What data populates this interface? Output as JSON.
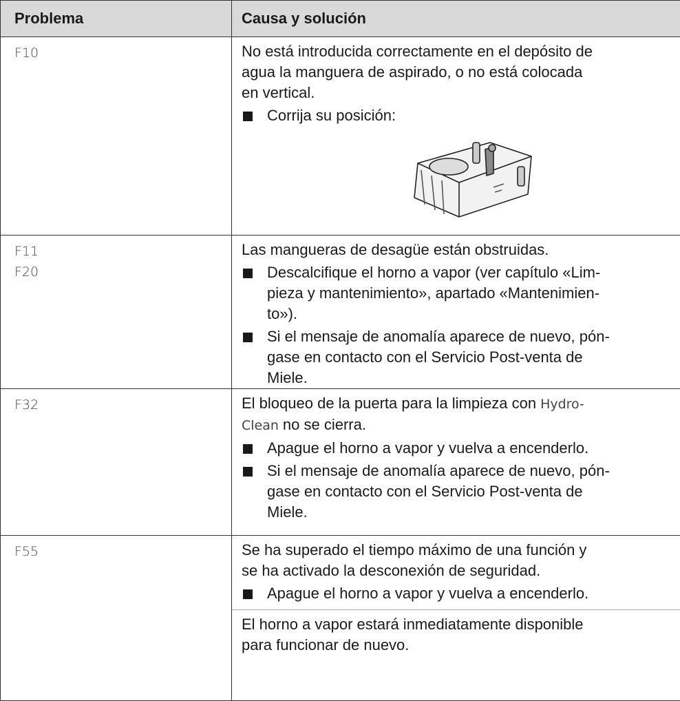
{
  "header": {
    "problem": "Problema",
    "cause": "Causa y solución"
  },
  "rows": [
    {
      "codes": [
        "F10"
      ],
      "blocks": [
        {
          "type": "p",
          "lines": [
            "No está introducida correctamente en el depósito de",
            "agua la manguera de aspirado, o no está colocada",
            "en vertical."
          ]
        },
        {
          "type": "bullet",
          "lines": [
            "Corrija su posición:"
          ]
        },
        {
          "type": "figure"
        }
      ]
    },
    {
      "codes": [
        "F11",
        "F20"
      ],
      "blocks": [
        {
          "type": "p",
          "lines": [
            "Las mangueras de desagüe están obstruidas."
          ]
        },
        {
          "type": "bullet",
          "lines": [
            "Descalcifique el horno a vapor (ver capítulo «Lim-",
            "pieza y mantenimiento», apartado «Mantenimien-",
            "to»)."
          ]
        },
        {
          "type": "bullet",
          "lines": [
            "Si el mensaje de anomalía aparece de nuevo, pón-",
            "gase en contacto con el Servicio Post-venta de",
            "Miele."
          ]
        }
      ]
    },
    {
      "codes": [
        "F32"
      ],
      "blocks": [
        {
          "type": "p",
          "lines": [
            [
              {
                "text": "El bloqueo de la puerta para la limpieza con"
              },
              {
                "text": "Hydro-",
                "display": true
              }
            ],
            [
              {
                "text": "Clean",
                "display": true
              },
              {
                "text": "no se cierra."
              }
            ]
          ]
        },
        {
          "type": "bullet",
          "lines": [
            "Apague el horno a vapor y vuelva a encenderlo."
          ]
        },
        {
          "type": "bullet",
          "lines": [
            "Si el mensaje de anomalía aparece de nuevo, pón-",
            "gase en contacto con el Servicio Post-venta de",
            "Miele."
          ]
        }
      ]
    },
    {
      "codes": [
        "F55"
      ],
      "blocks": [
        {
          "type": "p",
          "lines": [
            "Se ha superado el tiempo máximo de una función y",
            "se ha activado la desconexión de seguridad."
          ]
        },
        {
          "type": "bullet",
          "lines": [
            "Apague el horno a vapor y vuelva a encenderlo."
          ]
        },
        {
          "type": "note",
          "lines": [
            "El horno a vapor estará inmediatamente disponible",
            "para funcionar de nuevo."
          ]
        }
      ]
    }
  ]
}
